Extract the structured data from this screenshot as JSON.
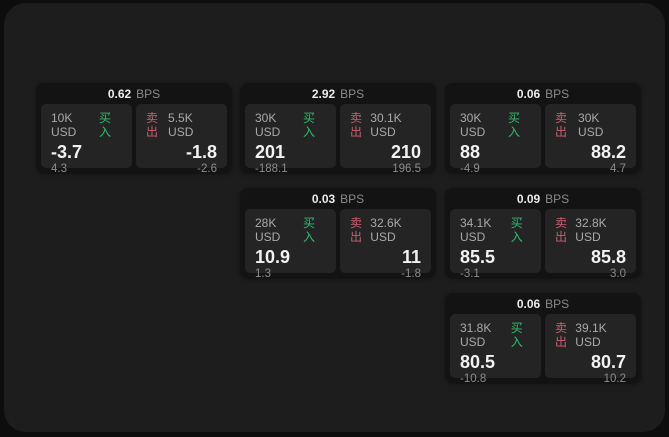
{
  "colors": {
    "page_bg": "#0d0d0d",
    "panel_bg": "#1d1d1d",
    "card_bg": "#131313",
    "tile_bg": "#242424",
    "text_primary": "#ececec",
    "text_secondary": "#a9a9a9",
    "text_muted": "#8c8c8c",
    "buy_green": "#2fbe70",
    "sell_red": "#c95f70"
  },
  "labels": {
    "bps": "BPS",
    "buy": "买入",
    "sell": "卖出"
  },
  "cards": [
    {
      "spread_bps": "0.62",
      "buy": {
        "amount": "10K USD",
        "price": "-3.7",
        "delta": "4.3"
      },
      "sell": {
        "amount": "5.5K USD",
        "price": "-1.8",
        "delta": "-2.6"
      }
    },
    {
      "spread_bps": "2.92",
      "buy": {
        "amount": "30K USD",
        "price": "201",
        "delta": "-188.1"
      },
      "sell": {
        "amount": "30.1K USD",
        "price": "210",
        "delta": "196.5"
      }
    },
    {
      "spread_bps": "0.06",
      "buy": {
        "amount": "30K USD",
        "price": "88",
        "delta": "-4.9"
      },
      "sell": {
        "amount": "30K USD",
        "price": "88.2",
        "delta": "4.7"
      }
    },
    {
      "spread_bps": "0.03",
      "buy": {
        "amount": "28K USD",
        "price": "10.9",
        "delta": "1.3"
      },
      "sell": {
        "amount": "32.6K USD",
        "price": "11",
        "delta": "-1.8"
      }
    },
    {
      "spread_bps": "0.09",
      "buy": {
        "amount": "34.1K USD",
        "price": "85.5",
        "delta": "-3.1"
      },
      "sell": {
        "amount": "32.8K USD",
        "price": "85.8",
        "delta": "3.0"
      }
    },
    {
      "spread_bps": "0.06",
      "buy": {
        "amount": "31.8K USD",
        "price": "80.5",
        "delta": "-10.8"
      },
      "sell": {
        "amount": "39.1K USD",
        "price": "80.7",
        "delta": "10.2"
      }
    }
  ]
}
